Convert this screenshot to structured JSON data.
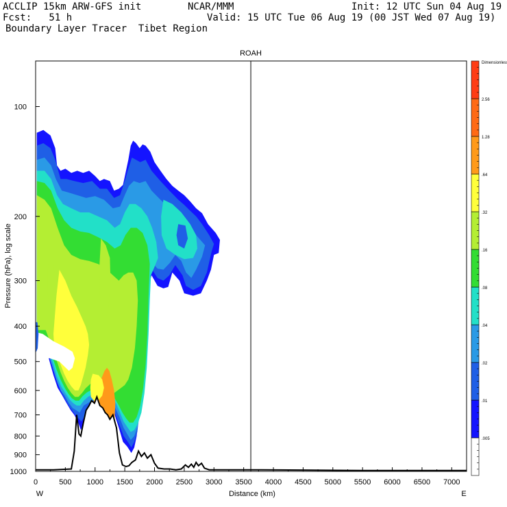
{
  "header": {
    "model": "ACCLIP 15km ARW-GFS init",
    "agency": "NCAR/MMM",
    "init": "Init: 12 UTC Sun 04 Aug 19",
    "forecast": "Fcst:   51 h",
    "valid": "Valid: 15 UTC Tue 06 Aug 19 (00 JST Wed 07 Aug 19)",
    "product": "Boundary Layer Tracer  Tibet Region"
  },
  "chart_data": {
    "type": "heatmap",
    "title": "ROAH",
    "xlabel": "Distance (km)",
    "ylabel": "Pressure (hPa), log scale",
    "xlim": [
      0,
      7250
    ],
    "ylim": [
      1000,
      75
    ],
    "x_ticks": [
      0,
      500,
      1000,
      1500,
      2000,
      2500,
      3000,
      3500,
      4000,
      4500,
      5000,
      5500,
      6000,
      6500,
      7000
    ],
    "y_ticks": [
      100,
      200,
      300,
      400,
      500,
      600,
      700,
      800,
      900,
      1000
    ],
    "x_left_label": "W",
    "x_right_label": "E",
    "marker_line_x": 3620,
    "colorbar": {
      "levels": [
        ".005",
        ".01",
        ".02",
        ".04",
        ".08",
        ".16",
        ".32",
        ".64",
        "1.28",
        "2.56",
        "Dimensionless"
      ],
      "colors": [
        "#ffffff",
        "#1414ff",
        "#1f5fe6",
        "#2a9ae6",
        "#22e0c8",
        "#33dd33",
        "#b4ee33",
        "#ffff3b",
        "#ff9a1a",
        "#ff6a14",
        "#ff3c14"
      ]
    },
    "terrain_km_hpa": [
      [
        0,
        990
      ],
      [
        300,
        990
      ],
      [
        600,
        985
      ],
      [
        650,
        880
      ],
      [
        690,
        700
      ],
      [
        730,
        790
      ],
      [
        760,
        800
      ],
      [
        800,
        740
      ],
      [
        850,
        680
      ],
      [
        900,
        660
      ],
      [
        940,
        640
      ],
      [
        990,
        650
      ],
      [
        1030,
        625
      ],
      [
        1080,
        660
      ],
      [
        1130,
        670
      ],
      [
        1170,
        690
      ],
      [
        1210,
        700
      ],
      [
        1250,
        720
      ],
      [
        1300,
        700
      ],
      [
        1360,
        760
      ],
      [
        1410,
        890
      ],
      [
        1460,
        960
      ],
      [
        1520,
        970
      ],
      [
        1570,
        965
      ],
      [
        1620,
        945
      ],
      [
        1680,
        930
      ],
      [
        1730,
        880
      ],
      [
        1780,
        910
      ],
      [
        1830,
        890
      ],
      [
        1880,
        920
      ],
      [
        1940,
        900
      ],
      [
        2000,
        950
      ],
      [
        2060,
        980
      ],
      [
        2160,
        985
      ],
      [
        2260,
        985
      ],
      [
        2360,
        990
      ],
      [
        2450,
        985
      ],
      [
        2520,
        960
      ],
      [
        2570,
        975
      ],
      [
        2620,
        955
      ],
      [
        2660,
        975
      ],
      [
        2700,
        945
      ],
      [
        2740,
        965
      ],
      [
        2790,
        950
      ],
      [
        2840,
        980
      ],
      [
        2920,
        990
      ],
      [
        3200,
        990
      ],
      [
        3800,
        990
      ],
      [
        4500,
        992
      ],
      [
        5500,
        995
      ],
      [
        7250,
        995
      ]
    ]
  }
}
